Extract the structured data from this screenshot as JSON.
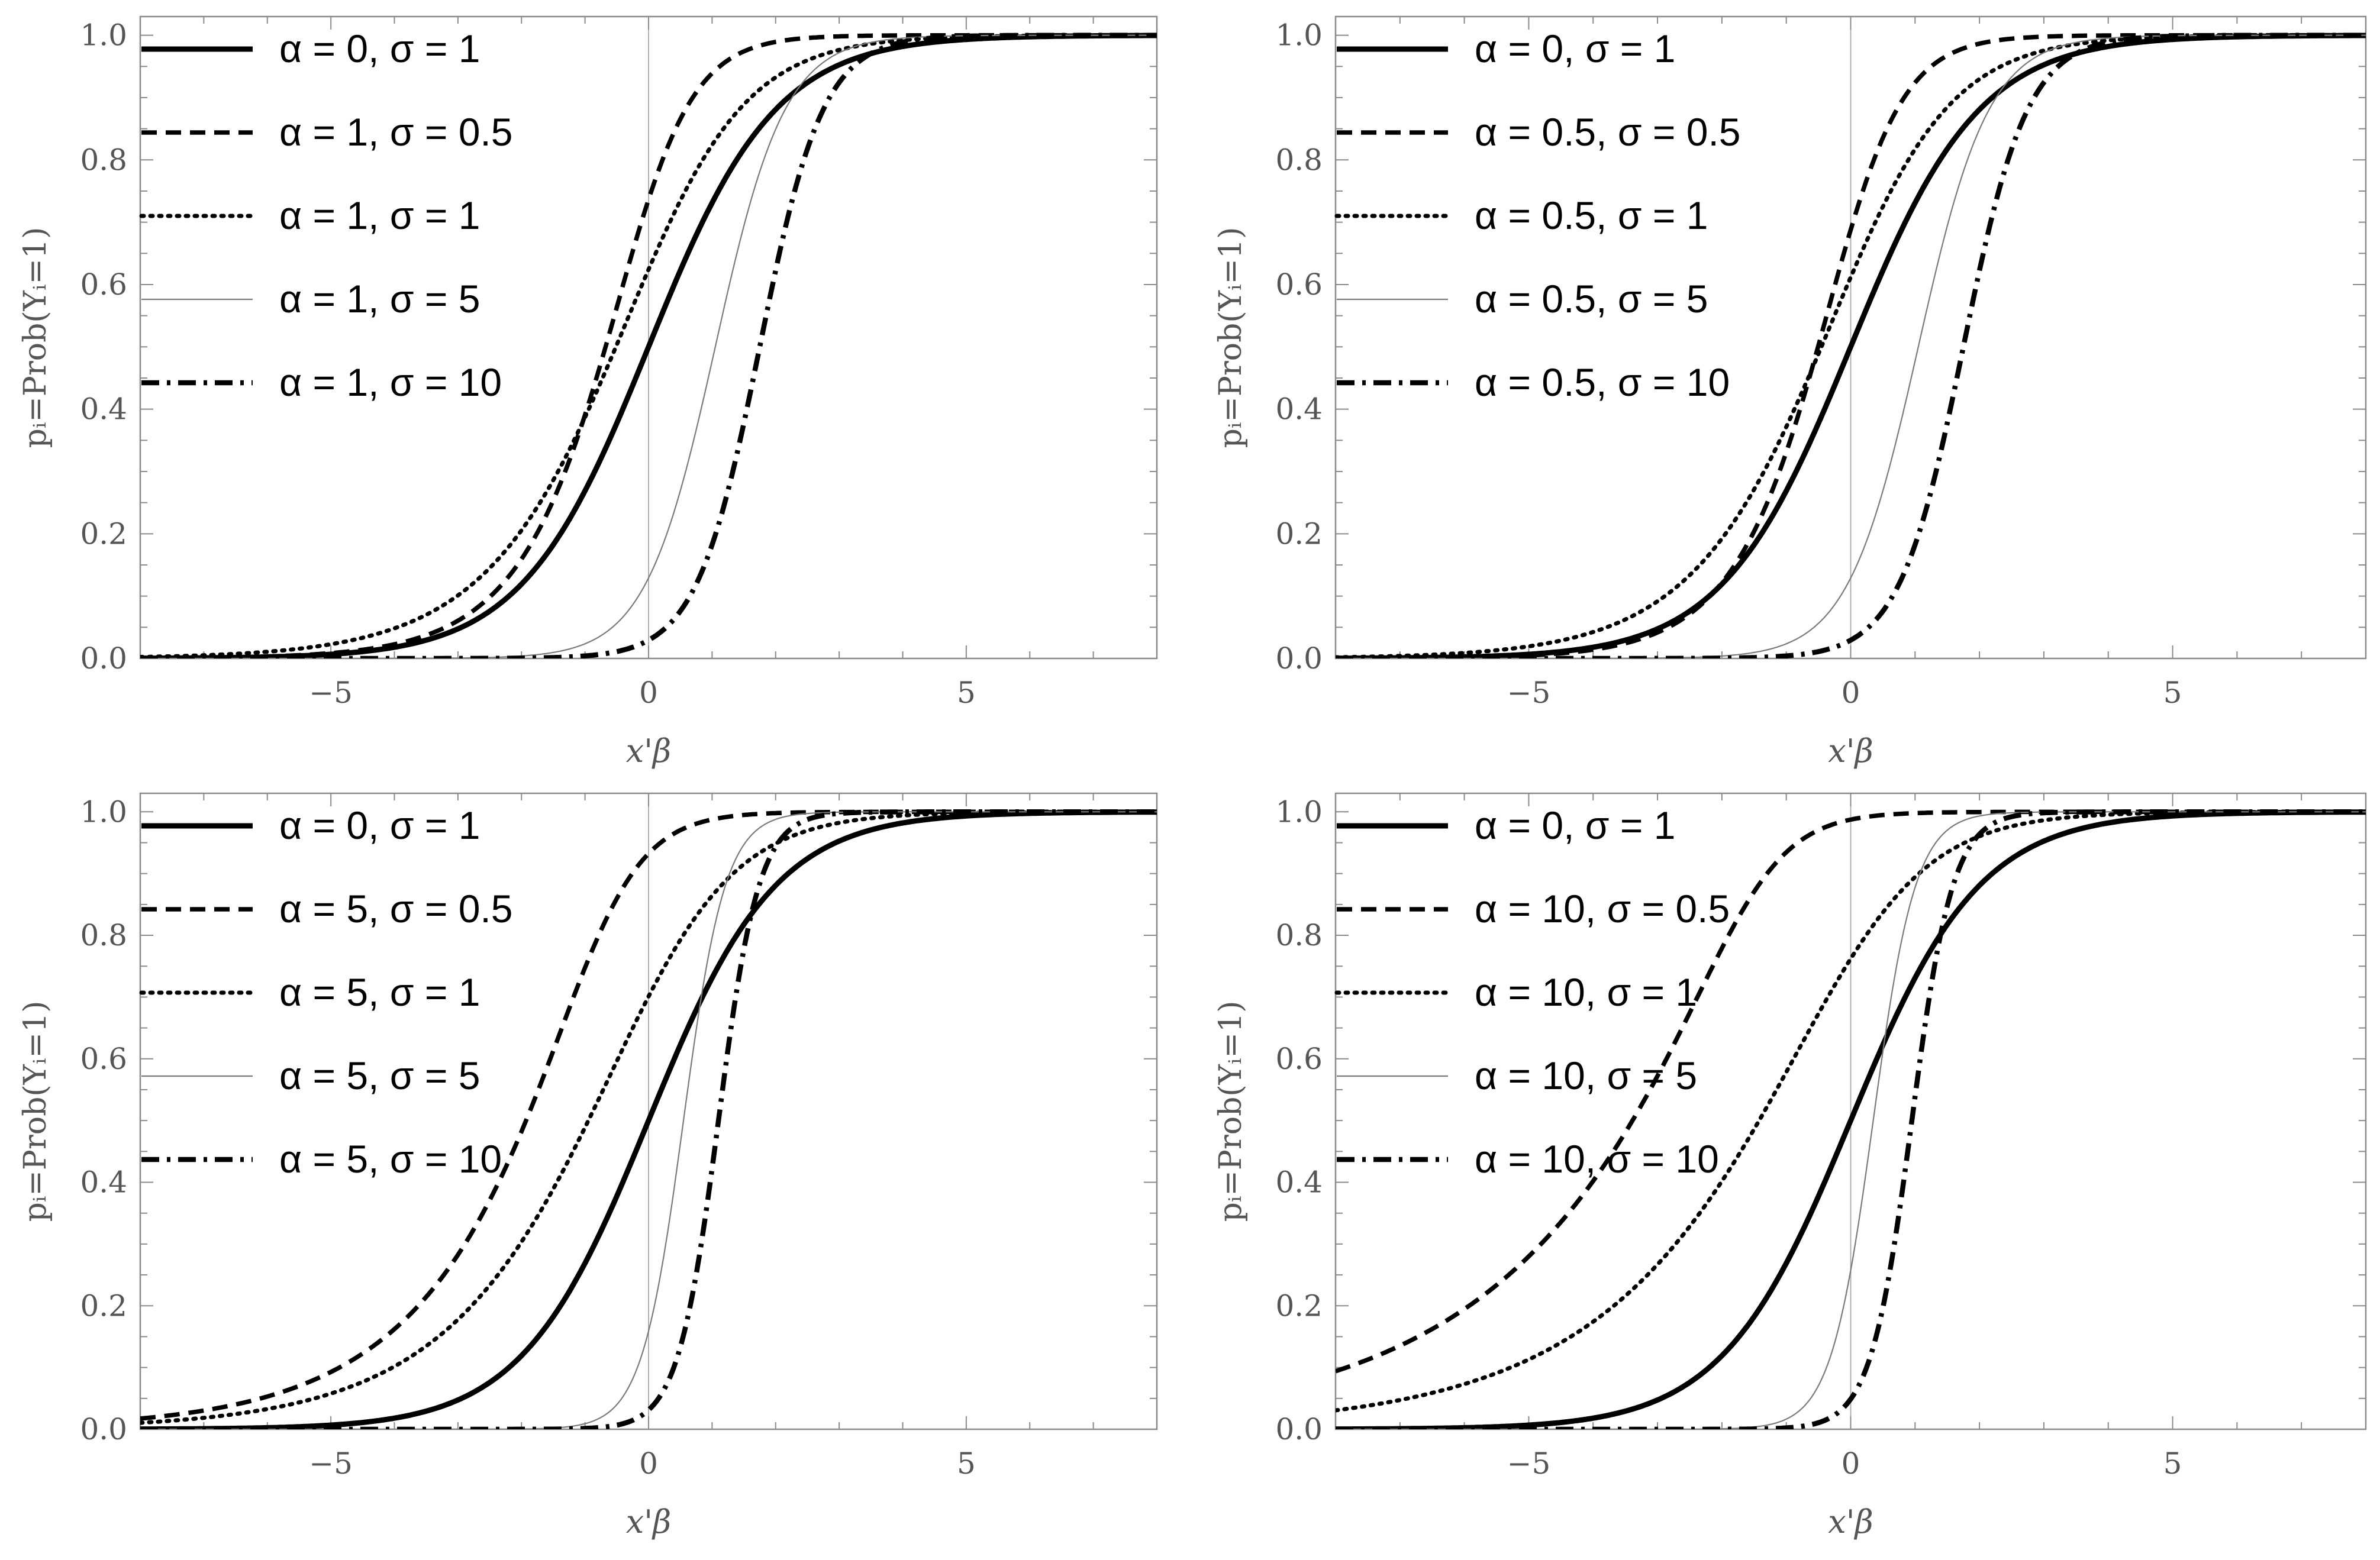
{
  "chart_data": [
    {
      "type": "line",
      "title": "",
      "xlabel": "x'β",
      "ylabel": "pᵢ=Prob(Yᵢ=1)",
      "xlim": [
        -8,
        8
      ],
      "ylim": [
        0,
        1.03
      ],
      "xticks": [
        -5,
        0,
        5
      ],
      "yticks": [
        0.0,
        0.2,
        0.4,
        0.6,
        0.8,
        1.0
      ],
      "xtick_labels": [
        "−5",
        "0",
        "5"
      ],
      "ytick_labels": [
        "0.0",
        "0.2",
        "0.4",
        "0.6",
        "0.8",
        "1.0"
      ],
      "grid": false,
      "legend_position": "top-left",
      "vertical_reference_x": 0,
      "series": [
        {
          "name": "α = 0, σ = 1",
          "alpha": 0,
          "sigma": 1,
          "style": "solid-thick"
        },
        {
          "name": "α = 1, σ = 0.5",
          "alpha": 1,
          "sigma": 0.5,
          "style": "dashed"
        },
        {
          "name": "α = 1, σ = 1",
          "alpha": 1,
          "sigma": 1,
          "style": "dotted"
        },
        {
          "name": "α = 1, σ = 5",
          "alpha": 1,
          "sigma": 5,
          "style": "solid-thin"
        },
        {
          "name": "α = 1, σ = 10",
          "alpha": 1,
          "sigma": 10,
          "style": "dashdot"
        }
      ]
    },
    {
      "type": "line",
      "title": "",
      "xlabel": "x'β",
      "ylabel": "pᵢ=Prob(Yᵢ=1)",
      "xlim": [
        -8,
        8
      ],
      "ylim": [
        0,
        1.03
      ],
      "xticks": [
        -5,
        0,
        5
      ],
      "yticks": [
        0.0,
        0.2,
        0.4,
        0.6,
        0.8,
        1.0
      ],
      "xtick_labels": [
        "−5",
        "0",
        "5"
      ],
      "ytick_labels": [
        "0.0",
        "0.2",
        "0.4",
        "0.6",
        "0.8",
        "1.0"
      ],
      "grid": false,
      "legend_position": "top-left",
      "vertical_reference_x": 0,
      "series": [
        {
          "name": "α = 0, σ = 1",
          "alpha": 0,
          "sigma": 1,
          "style": "solid-thick"
        },
        {
          "name": "α = 0.5, σ = 0.5",
          "alpha": 0.5,
          "sigma": 0.5,
          "style": "dashed"
        },
        {
          "name": "α = 0.5, σ = 1",
          "alpha": 0.5,
          "sigma": 1,
          "style": "dotted"
        },
        {
          "name": "α = 0.5, σ = 5",
          "alpha": 0.5,
          "sigma": 5,
          "style": "solid-thin"
        },
        {
          "name": "α = 0.5, σ = 10",
          "alpha": 0.5,
          "sigma": 10,
          "style": "dashdot"
        }
      ]
    },
    {
      "type": "line",
      "title": "",
      "xlabel": "x'β",
      "ylabel": "pᵢ=Prob(Yᵢ=1)",
      "xlim": [
        -8,
        8
      ],
      "ylim": [
        0,
        1.03
      ],
      "xticks": [
        -5,
        0,
        5
      ],
      "yticks": [
        0.0,
        0.2,
        0.4,
        0.6,
        0.8,
        1.0
      ],
      "xtick_labels": [
        "−5",
        "0",
        "5"
      ],
      "ytick_labels": [
        "0.0",
        "0.2",
        "0.4",
        "0.6",
        "0.8",
        "1.0"
      ],
      "grid": false,
      "legend_position": "top-left",
      "vertical_reference_x": 0,
      "series": [
        {
          "name": "α = 0, σ = 1",
          "alpha": 0,
          "sigma": 1,
          "style": "solid-thick"
        },
        {
          "name": "α = 5, σ = 0.5",
          "alpha": 5,
          "sigma": 0.5,
          "style": "dashed"
        },
        {
          "name": "α = 5, σ = 1",
          "alpha": 5,
          "sigma": 1,
          "style": "dotted"
        },
        {
          "name": "α = 5, σ = 5",
          "alpha": 5,
          "sigma": 5,
          "style": "solid-thin"
        },
        {
          "name": "α = 5, σ = 10",
          "alpha": 5,
          "sigma": 10,
          "style": "dashdot"
        }
      ]
    },
    {
      "type": "line",
      "title": "",
      "xlabel": "x'β",
      "ylabel": "pᵢ=Prob(Yᵢ=1)",
      "xlim": [
        -8,
        8
      ],
      "ylim": [
        0,
        1.03
      ],
      "xticks": [
        -5,
        0,
        5
      ],
      "yticks": [
        0.0,
        0.2,
        0.4,
        0.6,
        0.8,
        1.0
      ],
      "xtick_labels": [
        "−5",
        "0",
        "5"
      ],
      "ytick_labels": [
        "0.0",
        "0.2",
        "0.4",
        "0.6",
        "0.8",
        "1.0"
      ],
      "grid": false,
      "legend_position": "top-left",
      "vertical_reference_x": 0,
      "series": [
        {
          "name": "α = 0, σ = 1",
          "alpha": 0,
          "sigma": 1,
          "style": "solid-thick"
        },
        {
          "name": "α = 10, σ = 0.5",
          "alpha": 10,
          "sigma": 0.5,
          "style": "dashed"
        },
        {
          "name": "α = 10, σ = 1",
          "alpha": 10,
          "sigma": 1,
          "style": "dotted"
        },
        {
          "name": "α = 10, σ = 5",
          "alpha": 10,
          "sigma": 5,
          "style": "solid-thin"
        },
        {
          "name": "α = 10, σ = 10",
          "alpha": 10,
          "sigma": 10,
          "style": "dashdot"
        }
      ]
    }
  ]
}
